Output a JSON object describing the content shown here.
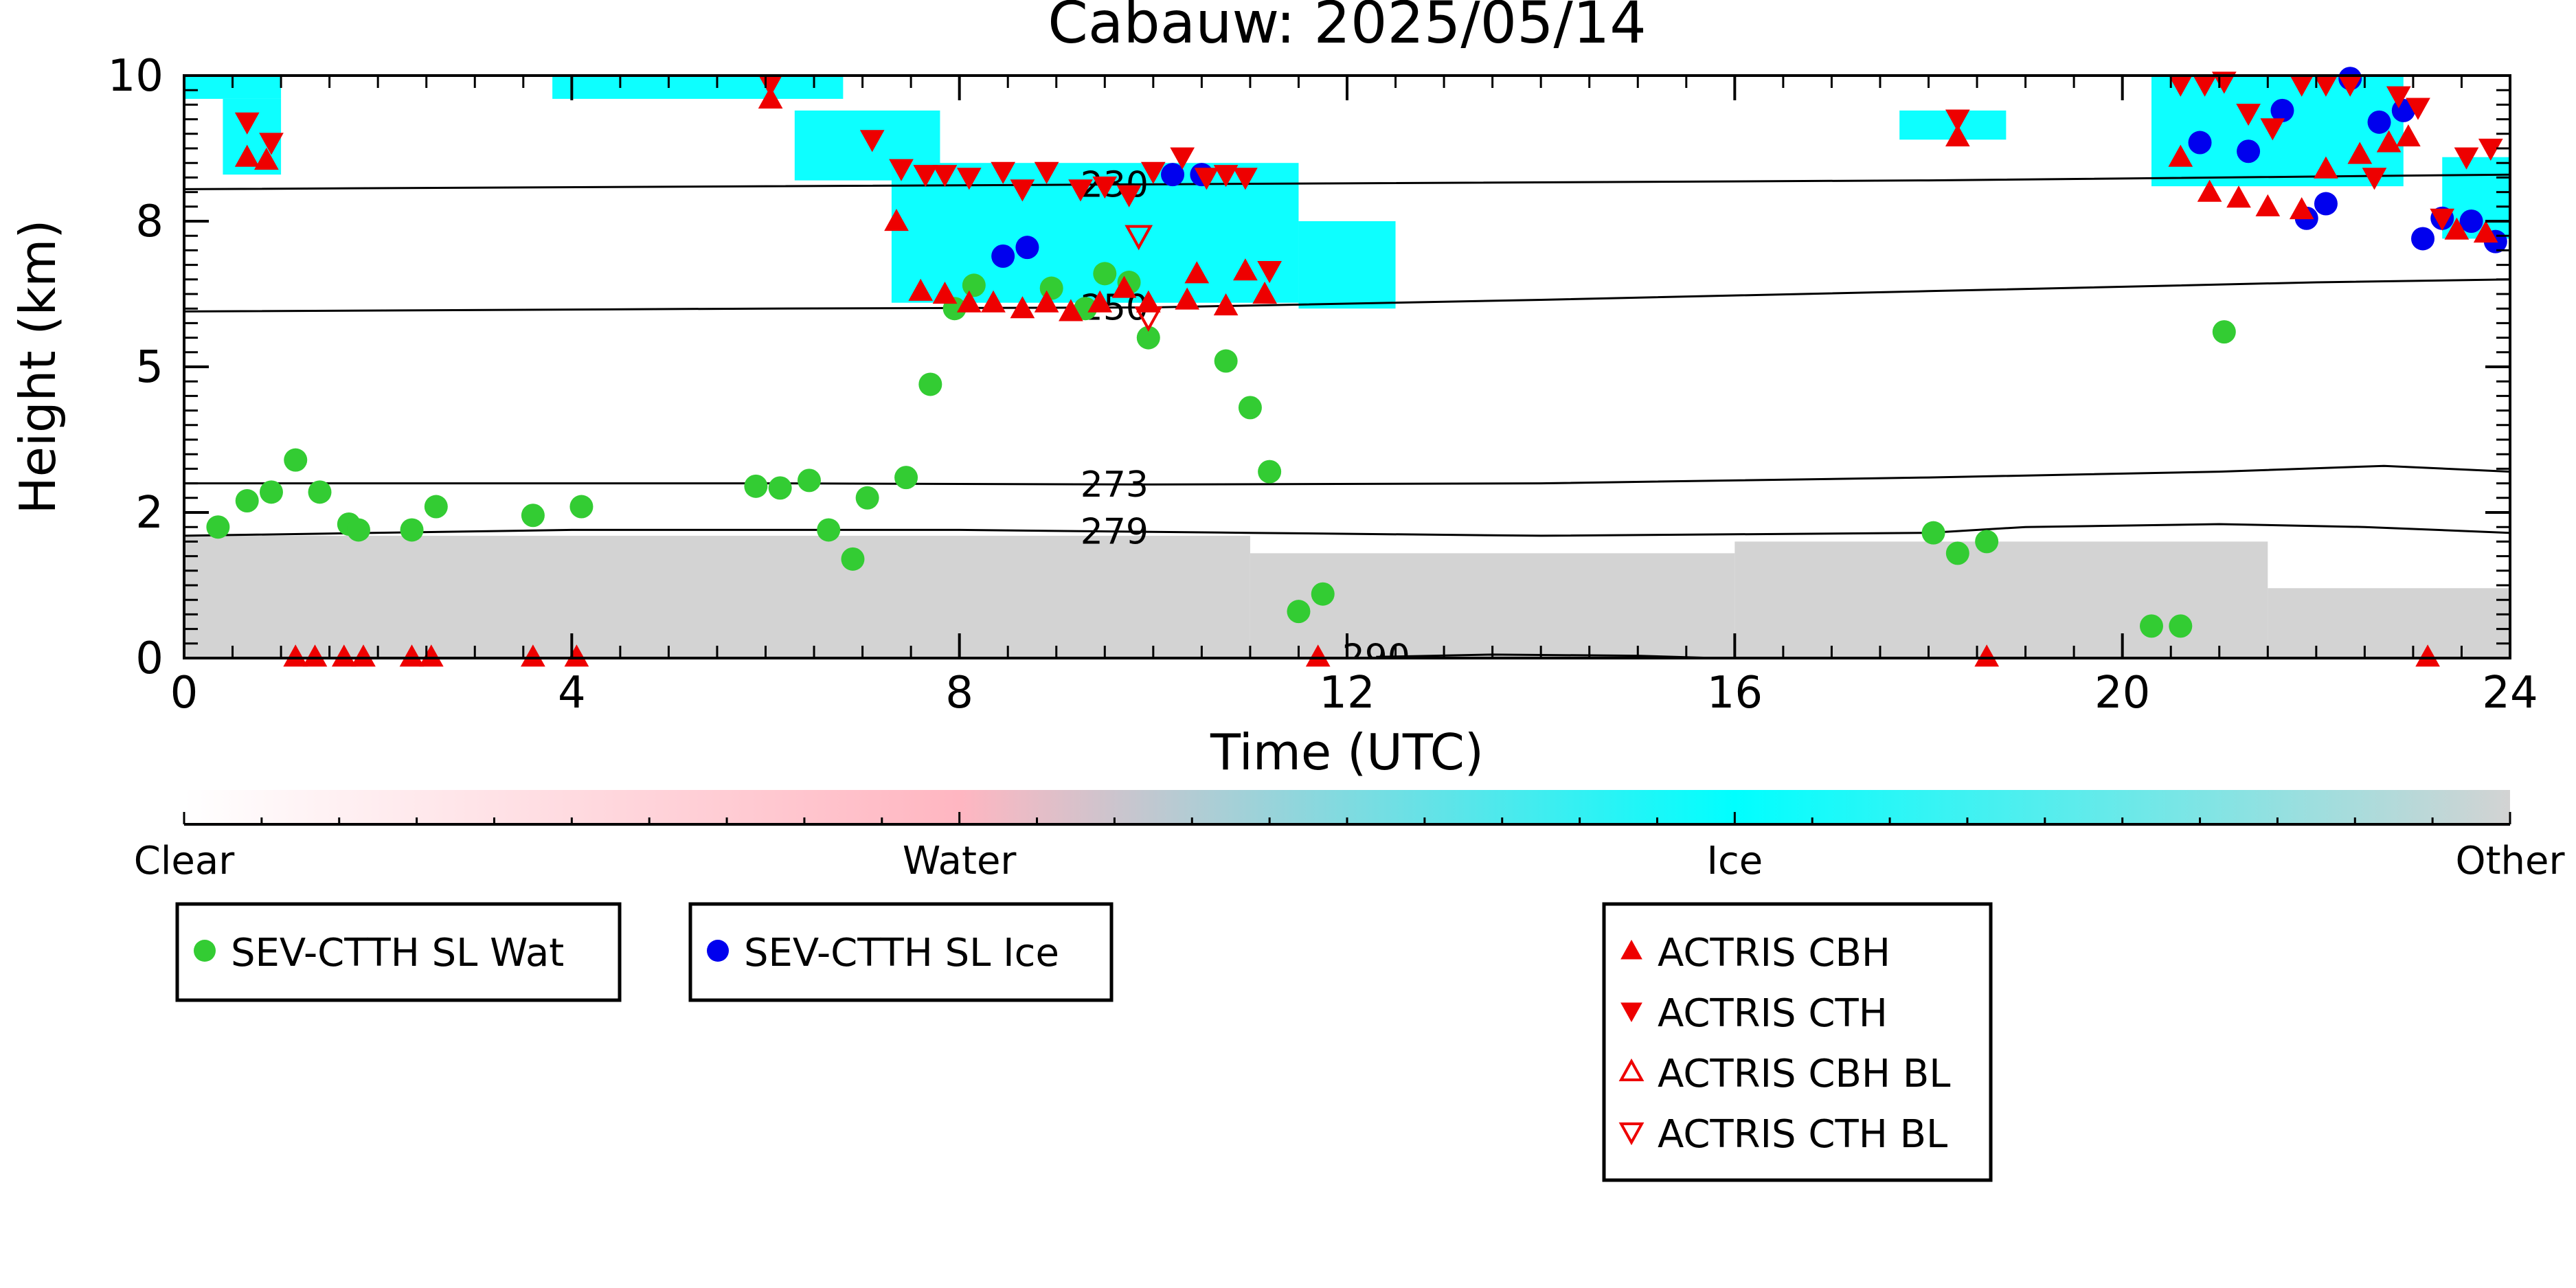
{
  "chart_data": {
    "type": "scatter",
    "title": "Cabauw: 2025/05/14",
    "xlabel": "Time (UTC)",
    "ylabel": "Height (km)",
    "xlim": [
      0,
      24
    ],
    "ylim": [
      0,
      10
    ],
    "x_ticks": [
      0,
      4,
      8,
      12,
      16,
      20,
      24
    ],
    "x_tick_labels": [
      "0",
      "4",
      "8",
      "12",
      "16",
      "20",
      "24"
    ],
    "y_ticks": [
      0,
      2.5,
      5,
      7.5,
      10
    ],
    "y_tick_labels": [
      "0",
      "2",
      "5",
      "8",
      "10"
    ],
    "colorbar": {
      "labels": [
        "Clear",
        "Water",
        "Ice",
        "Other"
      ],
      "colors": [
        "#ffffff",
        "#ffb6c1",
        "#00ffff",
        "#d3d3d3"
      ]
    },
    "isotherms": [
      {
        "label": "230",
        "label_x": 9.6,
        "points": [
          [
            0,
            8.05
          ],
          [
            6,
            8.1
          ],
          [
            12,
            8.15
          ],
          [
            18,
            8.2
          ],
          [
            24,
            8.3
          ]
        ]
      },
      {
        "label": "250",
        "label_x": 9.6,
        "points": [
          [
            0,
            5.95
          ],
          [
            6,
            6.0
          ],
          [
            10,
            6.02
          ],
          [
            14,
            6.15
          ],
          [
            18,
            6.3
          ],
          [
            22,
            6.45
          ],
          [
            24,
            6.5
          ]
        ]
      },
      {
        "label": "273",
        "label_x": 9.6,
        "points": [
          [
            0,
            3.0
          ],
          [
            6,
            3.0
          ],
          [
            10,
            2.98
          ],
          [
            14,
            3.0
          ],
          [
            18,
            3.1
          ],
          [
            21,
            3.2
          ],
          [
            22.7,
            3.3
          ],
          [
            24,
            3.2
          ]
        ]
      },
      {
        "label": "279",
        "label_x": 9.6,
        "points": [
          [
            0,
            2.1
          ],
          [
            4,
            2.2
          ],
          [
            8,
            2.2
          ],
          [
            11,
            2.15
          ],
          [
            14,
            2.1
          ],
          [
            18,
            2.15
          ],
          [
            19,
            2.25
          ],
          [
            21,
            2.3
          ],
          [
            22.5,
            2.25
          ],
          [
            24,
            2.15
          ]
        ]
      },
      {
        "label": "290",
        "label_x": 12.3,
        "points": [
          [
            12.3,
            0.02
          ],
          [
            13.5,
            0.06
          ],
          [
            15,
            0.04
          ],
          [
            15.8,
            0.0
          ]
        ]
      }
    ],
    "classification": {
      "Other": [
        {
          "x0": 0,
          "x1": 11.0,
          "y0": 0,
          "y1": 2.1
        },
        {
          "x0": 11.0,
          "x1": 16,
          "y0": 0,
          "y1": 1.8
        },
        {
          "x0": 16,
          "x1": 21.5,
          "y0": 0,
          "y1": 2.0
        },
        {
          "x0": 21.5,
          "x1": 24,
          "y0": 0,
          "y1": 1.2
        }
      ],
      "Ice": [
        {
          "x0": 0,
          "x1": 1.0,
          "y0": 9.6,
          "y1": 10
        },
        {
          "x0": 0.4,
          "x1": 1.0,
          "y0": 8.3,
          "y1": 9.6
        },
        {
          "x0": 3.8,
          "x1": 6.8,
          "y0": 9.6,
          "y1": 10
        },
        {
          "x0": 6.3,
          "x1": 7.8,
          "y0": 8.2,
          "y1": 9.4
        },
        {
          "x0": 7.3,
          "x1": 11.5,
          "y0": 6.1,
          "y1": 8.5
        },
        {
          "x0": 11.5,
          "x1": 12.5,
          "y0": 6.0,
          "y1": 7.5
        },
        {
          "x0": 17.7,
          "x1": 18.8,
          "y0": 8.9,
          "y1": 9.4
        },
        {
          "x0": 20.3,
          "x1": 22.9,
          "y0": 8.1,
          "y1": 10
        },
        {
          "x0": 23.3,
          "x1": 24,
          "y0": 7.2,
          "y1": 8.6
        }
      ]
    },
    "series": [
      {
        "name": "SEV-CTTH SL Wat",
        "marker": "circle",
        "color": "#33cc33",
        "x": [
          0.35,
          0.65,
          0.9,
          1.15,
          1.4,
          1.7,
          1.8,
          2.35,
          2.6,
          3.6,
          4.1,
          5.9,
          6.15,
          6.45,
          6.65,
          6.9,
          7.05,
          7.45,
          7.7,
          7.95,
          8.15,
          8.95,
          9.3,
          9.5,
          9.75,
          9.95,
          10.75,
          11.0,
          11.2,
          11.5,
          11.75,
          18.05,
          18.3,
          18.6,
          20.3,
          20.6,
          21.05
        ],
        "y": [
          2.25,
          2.7,
          2.85,
          3.4,
          2.85,
          2.3,
          2.2,
          2.2,
          2.6,
          2.45,
          2.6,
          2.95,
          2.92,
          3.05,
          2.2,
          1.7,
          2.75,
          3.1,
          4.7,
          6.0,
          6.4,
          6.35,
          6.0,
          6.6,
          6.45,
          5.5,
          5.1,
          4.3,
          3.2,
          0.8,
          1.1,
          2.15,
          1.8,
          2.0,
          0.55,
          0.55,
          5.6
        ]
      },
      {
        "name": "SEV-CTTH SL Ice",
        "marker": "circle",
        "color": "#0000ee",
        "x": [
          8.45,
          8.7,
          10.2,
          10.5,
          20.8,
          21.3,
          21.65,
          21.9,
          22.1,
          22.35,
          22.65,
          22.9,
          23.1,
          23.3,
          23.6,
          23.85
        ],
        "y": [
          6.9,
          7.05,
          8.3,
          8.3,
          8.85,
          8.7,
          9.4,
          7.55,
          7.8,
          9.95,
          9.2,
          9.4,
          7.2,
          7.55,
          7.5,
          7.15
        ]
      },
      {
        "name": "ACTRIS CBH",
        "marker": "triangle-up",
        "color": "#ee0000",
        "x": [
          0.65,
          0.85,
          1.15,
          1.35,
          1.65,
          1.85,
          2.35,
          2.55,
          3.6,
          4.05,
          6.05,
          7.35,
          7.6,
          7.85,
          8.1,
          8.35,
          8.65,
          8.9,
          9.15,
          9.45,
          9.7,
          9.95,
          10.35,
          10.45,
          10.75,
          10.95,
          11.15,
          11.7,
          18.3,
          18.6,
          20.6,
          20.9,
          21.2,
          21.5,
          21.85,
          22.1,
          22.45,
          22.75,
          22.95,
          23.15,
          23.45,
          23.75
        ],
        "y": [
          8.6,
          8.55,
          0.02,
          0.02,
          0.02,
          0.02,
          0.02,
          0.02,
          0.02,
          0.02,
          9.6,
          7.5,
          6.3,
          6.25,
          6.1,
          6.1,
          6.0,
          6.1,
          5.95,
          6.1,
          6.35,
          6.1,
          6.15,
          6.6,
          6.05,
          6.65,
          6.25,
          0.02,
          8.95,
          0.02,
          8.6,
          8.0,
          7.9,
          7.75,
          7.7,
          8.4,
          8.65,
          8.85,
          8.95,
          0.02,
          7.35,
          7.3
        ]
      },
      {
        "name": "ACTRIS CTH",
        "marker": "triangle-down",
        "color": "#ee0000",
        "x": [
          0.65,
          0.9,
          6.05,
          7.1,
          7.4,
          7.65,
          7.85,
          8.1,
          8.45,
          8.65,
          8.9,
          9.25,
          9.5,
          9.75,
          10.0,
          10.3,
          10.55,
          10.75,
          10.95,
          11.2,
          18.3,
          20.6,
          20.85,
          21.05,
          21.3,
          21.55,
          21.85,
          22.1,
          22.35,
          22.6,
          22.85,
          23.05,
          23.3,
          23.55,
          23.8
        ],
        "y": [
          9.2,
          8.85,
          9.85,
          8.9,
          8.4,
          8.3,
          8.3,
          8.25,
          8.35,
          8.05,
          8.35,
          8.05,
          8.1,
          7.95,
          8.35,
          8.6,
          8.25,
          8.3,
          8.25,
          6.65,
          9.25,
          9.85,
          9.85,
          9.9,
          9.35,
          9.1,
          9.85,
          9.85,
          9.85,
          8.25,
          9.65,
          9.45,
          7.55,
          8.6,
          8.75
        ]
      },
      {
        "name": "ACTRIS CBH BL",
        "marker": "triangle-up-open",
        "color": "#ee0000",
        "x": [],
        "y": []
      },
      {
        "name": "ACTRIS CTH BL",
        "marker": "triangle-down-open",
        "color": "#ee0000",
        "x": [
          9.85,
          9.95
        ],
        "y": [
          7.25,
          5.85
        ]
      }
    ],
    "legends": [
      {
        "position": "bottom-left",
        "entries": [
          "SEV-CTTH SL Wat"
        ]
      },
      {
        "position": "bottom-left",
        "entries": [
          "SEV-CTTH SL Ice"
        ]
      },
      {
        "position": "bottom-center",
        "entries": [
          "ACTRIS CBH",
          "ACTRIS CTH",
          "ACTRIS CBH BL",
          "ACTRIS CTH BL"
        ]
      }
    ],
    "grid": false
  }
}
